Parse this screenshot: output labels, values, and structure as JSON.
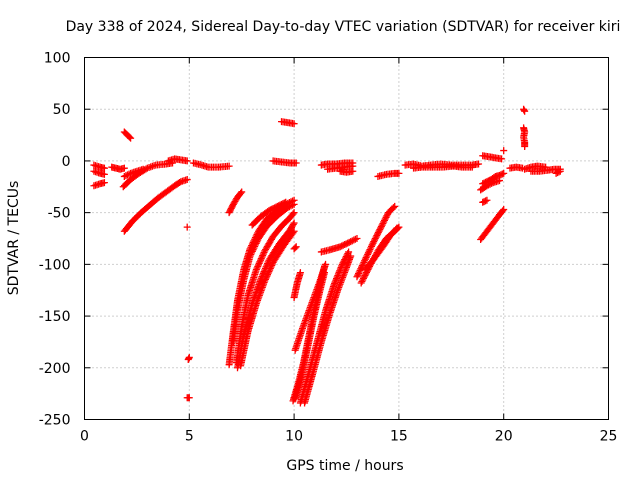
{
  "chart_data": {
    "type": "scatter",
    "title": "Day 338 of 2024, Sidereal Day-to-day VTEC variation (SDTVAR) for receiver kiri",
    "xlabel": "GPS time / hours",
    "ylabel": "SDTVAR / TECUs",
    "xlim": [
      0,
      25
    ],
    "ylim": [
      -250,
      100
    ],
    "xticks": [
      "0",
      "5",
      "10",
      "15",
      "20",
      "25"
    ],
    "yticks": [
      "100",
      "50",
      "0",
      "-50",
      "-100",
      "-150",
      "-200",
      "-250"
    ],
    "xtick_values": [
      0,
      5,
      10,
      15,
      20,
      25
    ],
    "ytick_values": [
      100,
      50,
      0,
      -50,
      -100,
      -150,
      -200,
      -250
    ],
    "grid": true,
    "marker": "plus",
    "color": "#ff0000",
    "series": [
      {
        "segments": [
          [
            [
              0.45,
              -4
            ],
            [
              0.6,
              -5
            ],
            [
              0.75,
              -6
            ],
            [
              0.95,
              -7
            ]
          ],
          [
            [
              0.45,
              -10
            ],
            [
              0.6,
              -11
            ],
            [
              0.75,
              -12
            ],
            [
              0.95,
              -13
            ]
          ],
          [
            [
              0.45,
              -24
            ],
            [
              0.6,
              -23
            ],
            [
              0.75,
              -22
            ],
            [
              0.95,
              -21
            ]
          ],
          [
            [
              1.3,
              -6
            ],
            [
              1.5,
              -7
            ],
            [
              1.7,
              -8
            ],
            [
              1.9,
              -7
            ]
          ],
          [
            [
              1.85,
              -25
            ],
            [
              2.2,
              -18
            ],
            [
              2.6,
              -12
            ],
            [
              3.0,
              -7
            ],
            [
              3.4,
              -4
            ],
            [
              3.9,
              -3
            ],
            [
              4.2,
              -2
            ]
          ],
          [
            [
              1.9,
              -68
            ],
            [
              2.3,
              -58
            ],
            [
              2.7,
              -50
            ],
            [
              3.1,
              -43
            ],
            [
              3.5,
              -36
            ],
            [
              3.9,
              -30
            ],
            [
              4.3,
              -24
            ],
            [
              4.6,
              -20
            ],
            [
              4.9,
              -18
            ]
          ],
          [
            [
              1.9,
              -15
            ],
            [
              2.2,
              -12
            ],
            [
              2.5,
              -10
            ],
            [
              2.8,
              -8
            ]
          ],
          [
            [
              1.9,
              28
            ],
            [
              2.05,
              25
            ],
            [
              2.2,
              22
            ]
          ],
          [
            [
              4.0,
              0
            ],
            [
              4.3,
              2
            ],
            [
              4.6,
              1
            ],
            [
              4.9,
              0
            ]
          ],
          [
            [
              5.2,
              -2
            ],
            [
              5.6,
              -4
            ],
            [
              5.9,
              -6
            ],
            [
              6.4,
              -6
            ],
            [
              6.9,
              -5
            ]
          ],
          [
            [
              4.9,
              -64
            ]
          ],
          [
            [
              4.95,
              -192
            ],
            [
              5.0,
              -190
            ]
          ],
          [
            [
              4.9,
              -229
            ],
            [
              5.0,
              -229
            ]
          ],
          [
            [
              6.9,
              -197
            ],
            [
              7.1,
              -165
            ],
            [
              7.3,
              -135
            ],
            [
              7.6,
              -105
            ],
            [
              7.9,
              -85
            ],
            [
              8.3,
              -68
            ],
            [
              8.7,
              -56
            ],
            [
              9.2,
              -48
            ],
            [
              9.7,
              -41
            ],
            [
              10.0,
              -38
            ]
          ],
          [
            [
              7.1,
              -175
            ],
            [
              7.3,
              -145
            ],
            [
              7.6,
              -115
            ],
            [
              7.9,
              -92
            ],
            [
              8.3,
              -75
            ],
            [
              8.7,
              -63
            ],
            [
              9.2,
              -53
            ],
            [
              9.7,
              -45
            ],
            [
              10.0,
              -42
            ]
          ],
          [
            [
              7.25,
              -195
            ],
            [
              7.5,
              -160
            ],
            [
              7.8,
              -130
            ],
            [
              8.2,
              -105
            ],
            [
              8.6,
              -87
            ],
            [
              9.0,
              -73
            ],
            [
              9.4,
              -63
            ],
            [
              9.8,
              -55
            ],
            [
              10.0,
              -50
            ]
          ],
          [
            [
              7.3,
              -200
            ],
            [
              7.6,
              -168
            ],
            [
              8.0,
              -138
            ],
            [
              8.4,
              -115
            ],
            [
              8.8,
              -96
            ],
            [
              9.3,
              -80
            ],
            [
              9.8,
              -67
            ],
            [
              10.0,
              -60
            ]
          ],
          [
            [
              7.45,
              -198
            ],
            [
              7.8,
              -165
            ],
            [
              8.2,
              -138
            ],
            [
              8.6,
              -116
            ],
            [
              9.0,
              -98
            ],
            [
              9.5,
              -82
            ],
            [
              10.0,
              -68
            ]
          ],
          [
            [
              6.9,
              -50
            ],
            [
              7.1,
              -42
            ],
            [
              7.3,
              -35
            ],
            [
              7.5,
              -30
            ]
          ],
          [
            [
              8.0,
              -62
            ],
            [
              8.4,
              -54
            ],
            [
              8.8,
              -48
            ],
            [
              9.2,
              -44
            ],
            [
              9.6,
              -40
            ]
          ],
          [
            [
              9.0,
              0
            ],
            [
              9.4,
              -1
            ],
            [
              9.8,
              -2
            ],
            [
              10.1,
              -2
            ]
          ],
          [
            [
              9.4,
              38
            ],
            [
              9.7,
              37
            ],
            [
              10.0,
              36
            ]
          ],
          [
            [
              10.0,
              -85
            ],
            [
              10.1,
              -83
            ]
          ],
          [
            [
              10.0,
              -132
            ],
            [
              10.15,
              -118
            ],
            [
              10.3,
              -108
            ]
          ],
          [
            [
              9.95,
              -232
            ],
            [
              10.2,
              -215
            ],
            [
              10.45,
              -195
            ],
            [
              10.7,
              -170
            ],
            [
              10.95,
              -145
            ],
            [
              11.2,
              -122
            ],
            [
              11.45,
              -102
            ]
          ],
          [
            [
              10.05,
              -230
            ],
            [
              10.35,
              -208
            ],
            [
              10.65,
              -180
            ],
            [
              10.95,
              -150
            ],
            [
              11.25,
              -124
            ],
            [
              11.45,
              -108
            ]
          ],
          [
            [
              10.05,
              -183
            ],
            [
              10.4,
              -162
            ],
            [
              10.8,
              -140
            ],
            [
              11.2,
              -118
            ],
            [
              11.5,
              -100
            ]
          ],
          [
            [
              10.3,
              -234
            ],
            [
              10.7,
              -205
            ],
            [
              11.1,
              -175
            ],
            [
              11.5,
              -145
            ],
            [
              11.9,
              -120
            ],
            [
              12.3,
              -100
            ],
            [
              12.6,
              -88
            ]
          ],
          [
            [
              10.5,
              -234
            ],
            [
              10.9,
              -205
            ],
            [
              11.3,
              -175
            ],
            [
              11.7,
              -148
            ],
            [
              12.1,
              -124
            ],
            [
              12.5,
              -103
            ],
            [
              12.7,
              -92
            ]
          ],
          [
            [
              11.3,
              -88
            ],
            [
              11.7,
              -86
            ],
            [
              12.2,
              -83
            ],
            [
              12.7,
              -78
            ],
            [
              13.0,
              -75
            ]
          ],
          [
            [
              11.3,
              -4
            ],
            [
              11.6,
              -3
            ],
            [
              12.0,
              -3
            ],
            [
              12.4,
              -2
            ],
            [
              12.8,
              -2
            ]
          ],
          [
            [
              11.6,
              -8
            ],
            [
              12.0,
              -7
            ],
            [
              12.4,
              -6
            ],
            [
              12.8,
              -5
            ]
          ],
          [
            [
              12.2,
              -10
            ],
            [
              12.5,
              -11
            ],
            [
              12.8,
              -10
            ]
          ],
          [
            [
              13.0,
              -112
            ],
            [
              13.4,
              -95
            ],
            [
              13.8,
              -78
            ],
            [
              14.2,
              -62
            ],
            [
              14.5,
              -50
            ],
            [
              14.8,
              -44
            ]
          ],
          [
            [
              13.2,
              -118
            ],
            [
              13.6,
              -102
            ],
            [
              14.0,
              -87
            ],
            [
              14.4,
              -75
            ],
            [
              14.8,
              -68
            ],
            [
              15.0,
              -64
            ]
          ],
          [
            [
              13.4,
              -105
            ],
            [
              13.8,
              -95
            ],
            [
              14.2,
              -84
            ],
            [
              14.6,
              -72
            ],
            [
              14.9,
              -65
            ]
          ],
          [
            [
              14.0,
              -15
            ],
            [
              14.4,
              -13
            ],
            [
              14.8,
              -12
            ],
            [
              15.0,
              -12
            ]
          ],
          [
            [
              15.3,
              -4
            ],
            [
              15.7,
              -3
            ],
            [
              16.1,
              -5
            ],
            [
              16.5,
              -4
            ],
            [
              17.0,
              -3
            ],
            [
              17.5,
              -4
            ],
            [
              18.0,
              -4
            ],
            [
              18.5,
              -4
            ],
            [
              18.8,
              -3
            ]
          ],
          [
            [
              15.7,
              -7
            ],
            [
              16.1,
              -6
            ],
            [
              16.6,
              -6
            ],
            [
              17.1,
              -6
            ],
            [
              17.6,
              -5
            ],
            [
              18.0,
              -6
            ],
            [
              18.5,
              -6
            ]
          ],
          [
            [
              19.0,
              5
            ],
            [
              19.3,
              4
            ],
            [
              19.6,
              3
            ],
            [
              19.9,
              2
            ]
          ],
          [
            [
              18.9,
              -28
            ],
            [
              19.2,
              -24
            ],
            [
              19.5,
              -21
            ],
            [
              19.8,
              -19
            ]
          ],
          [
            [
              19.0,
              -40
            ],
            [
              19.2,
              -38
            ]
          ],
          [
            [
              19.0,
              -22
            ],
            [
              19.2,
              -20
            ],
            [
              19.4,
              -18
            ],
            [
              19.6,
              -15
            ],
            [
              19.8,
              -14
            ],
            [
              20.0,
              -12
            ]
          ],
          [
            [
              18.9,
              -76
            ],
            [
              19.2,
              -68
            ],
            [
              19.5,
              -60
            ],
            [
              19.8,
              -52
            ],
            [
              20.0,
              -47
            ]
          ],
          [
            [
              20.0,
              10
            ]
          ],
          [
            [
              20.3,
              -7
            ],
            [
              20.6,
              -6
            ],
            [
              20.9,
              -7
            ]
          ],
          [
            [
              20.95,
              50
            ],
            [
              21.0,
              48
            ]
          ],
          [
            [
              20.95,
              32
            ],
            [
              21.0,
              28
            ],
            [
              20.95,
              23
            ],
            [
              21.0,
              18
            ],
            [
              21.0,
              14
            ]
          ],
          [
            [
              21.0,
              -8
            ],
            [
              21.3,
              -6
            ],
            [
              21.6,
              -5
            ],
            [
              22.0,
              -6
            ]
          ],
          [
            [
              21.3,
              -10
            ],
            [
              21.7,
              -10
            ],
            [
              22.1,
              -9
            ],
            [
              22.4,
              -8
            ],
            [
              22.7,
              -8
            ]
          ],
          [
            [
              22.5,
              -12
            ],
            [
              22.7,
              -10
            ]
          ]
        ]
      }
    ]
  }
}
